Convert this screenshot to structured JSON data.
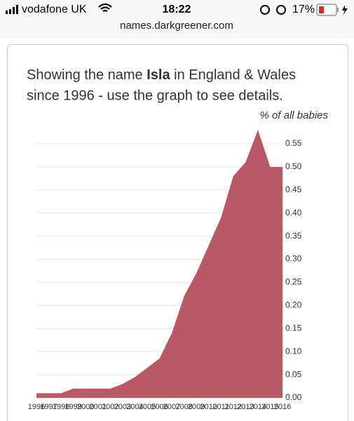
{
  "status_bar": {
    "carrier": "vodafone UK",
    "time": "18:22",
    "battery": "17%"
  },
  "url": "names.darkgreener.com",
  "chart_data": {
    "type": "area",
    "title": [
      "Showing the name ",
      "Isla",
      " in England & Wales",
      "since 1996 - use the graph to see details."
    ],
    "y_axis_label": "% of all babies",
    "x": [
      1996,
      1997,
      1998,
      1999,
      2000,
      2001,
      2002,
      2003,
      2004,
      2005,
      2006,
      2007,
      2008,
      2009,
      2010,
      2011,
      2012,
      2013,
      2014,
      2015,
      2016
    ],
    "values": [
      0.01,
      0.01,
      0.01,
      0.02,
      0.02,
      0.02,
      0.02,
      0.03,
      0.045,
      0.065,
      0.085,
      0.14,
      0.22,
      0.27,
      0.33,
      0.39,
      0.48,
      0.51,
      0.58,
      0.5,
      0.5
    ],
    "color": "#b4505c",
    "xlim": [
      1996,
      2016
    ],
    "xticks": [
      1996,
      1997,
      1998,
      1999,
      2000,
      2001,
      2002,
      2003,
      2004,
      2005,
      2006,
      2007,
      2008,
      2009,
      2010,
      2011,
      2012,
      2013,
      2014,
      2015,
      2016
    ],
    "ylim": [
      0,
      0.6
    ],
    "yticks": [
      {
        "value": 0,
        "label": "0.00"
      },
      {
        "value": 0.05,
        "label": "0.05"
      },
      {
        "value": 0.1,
        "label": "0.10"
      },
      {
        "value": 0.15,
        "label": "0.15"
      },
      {
        "value": 0.2,
        "label": "0.20"
      },
      {
        "value": 0.25,
        "label": "0.25"
      },
      {
        "value": 0.3,
        "label": "0.30"
      },
      {
        "value": 0.35,
        "label": "0.35"
      },
      {
        "value": 0.4,
        "label": "0.40"
      },
      {
        "value": 0.45,
        "label": "0.45"
      },
      {
        "value": 0.5,
        "label": "0.50"
      },
      {
        "value": 0.55,
        "label": "0.55"
      }
    ],
    "grid": true
  }
}
